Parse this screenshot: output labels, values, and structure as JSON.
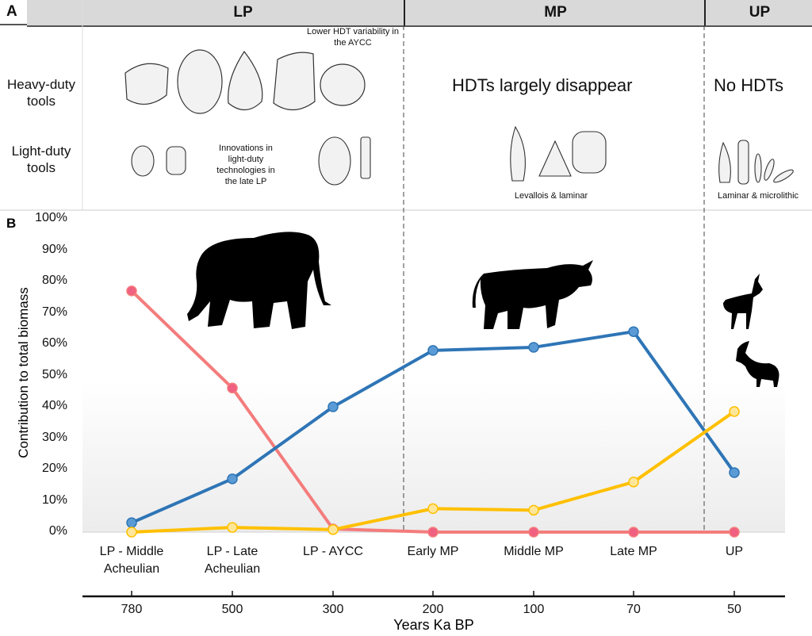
{
  "panel_a": {
    "label": "A",
    "periods": [
      "LP",
      "MP",
      "UP"
    ],
    "rows": [
      "Heavy-duty tools",
      "Light-duty tools"
    ],
    "notes": {
      "lp_hdt": "Lower HDT variability in the AYCC",
      "lp_ldt": "Innovations in light-duty technologies in the late LP",
      "mp_hdt": "HDTs largely disappear",
      "mp_ldt": "Levallois & laminar",
      "up_hdt": "No HDTs",
      "up_ldt": "Laminar & microlithic"
    }
  },
  "chart_data": {
    "panel_label": "B",
    "type": "line",
    "ylabel": "Contribution to total biomass",
    "xlabel": "Years Ka BP",
    "ylim": [
      0,
      100
    ],
    "yticks": [
      "0%",
      "10%",
      "20%",
      "30%",
      "40%",
      "50%",
      "60%",
      "70%",
      "80%",
      "90%",
      "100%"
    ],
    "categories": [
      "LP - Middle Acheulian",
      "LP - Late Acheulian",
      "LP - AYCC",
      "Early MP",
      "Middle MP",
      "Late MP",
      "UP"
    ],
    "years": [
      "780",
      "500",
      "300",
      "200",
      "100",
      "70",
      "50"
    ],
    "grid": false,
    "series": [
      {
        "color": "#f47c7c",
        "marker_color": "#f06080",
        "values": [
          77,
          46,
          1,
          0,
          0,
          0,
          0
        ]
      },
      {
        "color": "#2e75b6",
        "marker_color": "#5b9bd5",
        "values": [
          3,
          17,
          40,
          58,
          59,
          64,
          19
        ]
      },
      {
        "color": "#ffc000",
        "marker_color": "#ffe699",
        "values": [
          0,
          1.5,
          0.8,
          7.5,
          7,
          16,
          38.5
        ]
      }
    ],
    "period_boundaries_between": [
      [
        2,
        3
      ],
      [
        5,
        6
      ]
    ]
  }
}
